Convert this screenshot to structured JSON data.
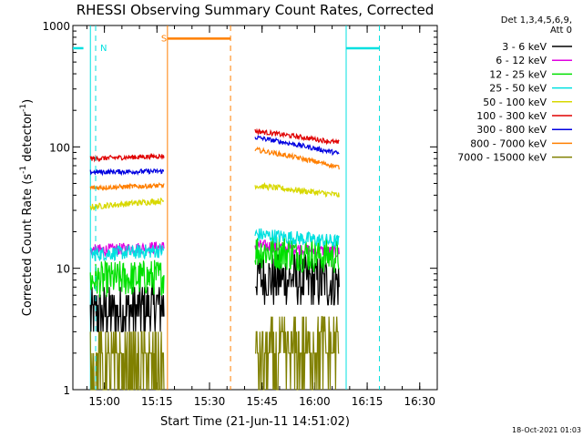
{
  "chart_data": {
    "type": "line",
    "title": "RHESSI Observing Summary Count Rates, Corrected",
    "xlabel": "Start Time (21-Jun-11 14:51:02)",
    "ylabel_main": "Corrected Count Rate (s",
    "ylabel_sup1": "-1",
    "ylabel_mid": " detector",
    "ylabel_sup2": "-1",
    "ylabel_end": ")",
    "yscale": "log",
    "ylim": [
      1,
      1000
    ],
    "xlim_minutes_after_1451": [
      0,
      104
    ],
    "xticks": [
      "15:00",
      "15:15",
      "15:30",
      "15:45",
      "16:00",
      "16:15",
      "16:30"
    ],
    "yticks": [
      "1",
      "10",
      "100",
      "1000"
    ],
    "legend_header": [
      "Det 1,3,4,5,6,9,",
      "Att 0"
    ],
    "legend_position": "right",
    "timestamp": "18-Oct-2021 01:03",
    "segments": [
      {
        "x": [
          5,
          26
        ]
      },
      {
        "x": [
          52,
          76
        ]
      }
    ],
    "series": [
      {
        "name": "3 - 6 keV",
        "color": "#000000",
        "levels": [
          [
            4.2,
            4.8
          ],
          [
            8.5,
            7.5
          ]
        ],
        "noise": 0.45
      },
      {
        "name": "6 - 12 keV",
        "color": "#e000e0",
        "levels": [
          [
            14,
            15
          ],
          [
            15.5,
            13.5
          ]
        ],
        "noise": 0.1
      },
      {
        "name": "12 - 25 keV",
        "color": "#00e000",
        "levels": [
          [
            8,
            8.5
          ],
          [
            14,
            12.5
          ]
        ],
        "noise": 0.3
      },
      {
        "name": "25 - 50 keV",
        "color": "#00e0e0",
        "levels": [
          [
            13,
            14
          ],
          [
            19,
            16.5
          ]
        ],
        "noise": 0.12
      },
      {
        "name": "50 - 100 keV",
        "color": "#d8d800",
        "levels": [
          [
            32,
            36
          ],
          [
            48,
            40
          ]
        ],
        "noise": 0.05
      },
      {
        "name": "100 - 300 keV",
        "color": "#e00000",
        "levels": [
          [
            80,
            84
          ],
          [
            135,
            108
          ]
        ],
        "noise": 0.04
      },
      {
        "name": "300 - 800 keV",
        "color": "#0000e0",
        "levels": [
          [
            62,
            63
          ],
          [
            120,
            88
          ]
        ],
        "noise": 0.04
      },
      {
        "name": "800 - 7000 keV",
        "color": "#ff7f00",
        "levels": [
          [
            46,
            48
          ],
          [
            95,
            68
          ]
        ],
        "noise": 0.04
      },
      {
        "name": "7000 - 15000 keV",
        "color": "#808000",
        "levels": [
          [
            1.6,
            1.6
          ],
          [
            1.7,
            2.3
          ]
        ],
        "noise": 0.6
      }
    ],
    "annotations": [
      {
        "label": "N",
        "color": "#00e0e0",
        "level": 650,
        "x": [
          0,
          3
        ],
        "x_dashed_end": 6.5
      },
      {
        "label": "S",
        "color": "#ff7f00",
        "level": 780,
        "x": [
          27,
          45
        ],
        "x_dashed": 45
      },
      {
        "label": "",
        "color": "#00e0e0",
        "level": 650,
        "x": [
          78,
          87.5
        ],
        "x_dashed_end": 87.5
      }
    ],
    "event_lines": [
      {
        "color": "#00e0e0",
        "x": 5,
        "dashed": false
      },
      {
        "color": "#ff7f00",
        "x": 27,
        "dashed": false
      },
      {
        "color": "#00e0e0",
        "x": 78,
        "dashed": false
      }
    ]
  }
}
